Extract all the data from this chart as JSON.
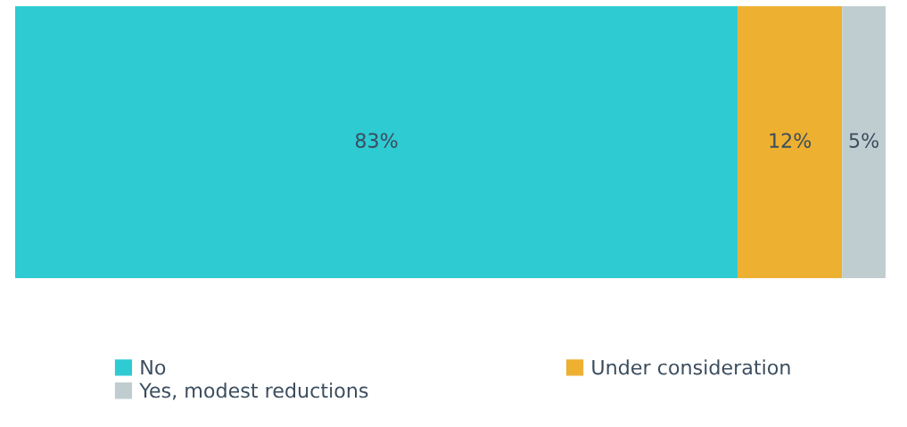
{
  "chart_data": {
    "type": "bar",
    "orientation": "horizontal",
    "stacked": true,
    "categories": [
      null
    ],
    "series": [
      {
        "name": "No",
        "color": "#2ecbd3",
        "values": [
          83
        ],
        "value_labels": [
          "83%"
        ]
      },
      {
        "name": "Under consideration",
        "color": "#edb030",
        "values": [
          12
        ],
        "value_labels": [
          "12%"
        ]
      },
      {
        "name": "Yes, modest reductions",
        "color": "#c0cdd0",
        "values": [
          5
        ],
        "value_labels": [
          "5%"
        ]
      }
    ],
    "tick_labels": false,
    "legend": "bottom"
  }
}
